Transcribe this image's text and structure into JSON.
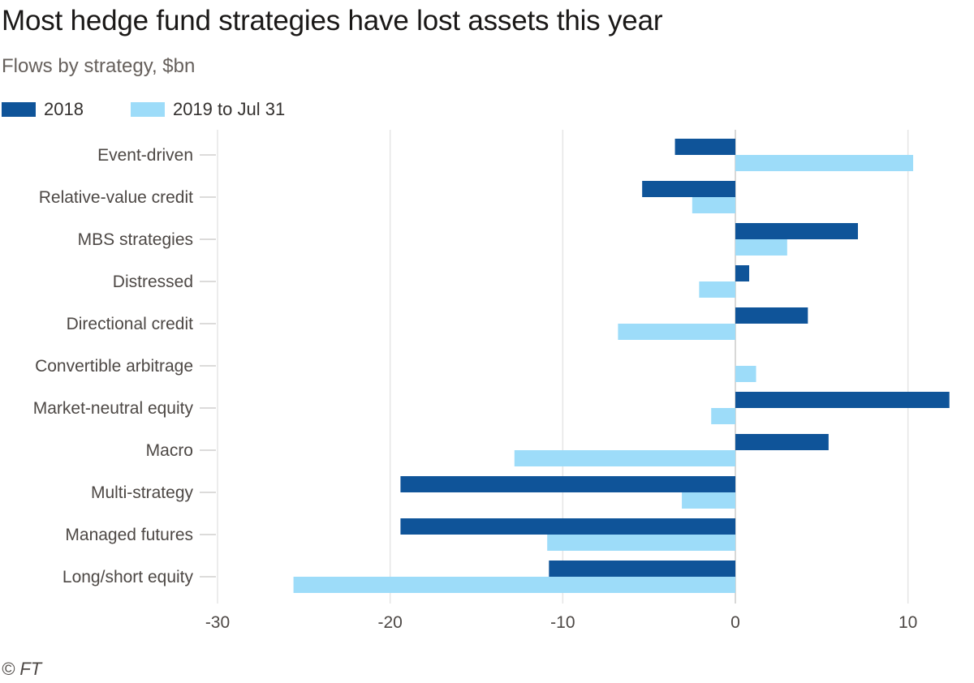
{
  "title": "Most hedge fund strategies have lost assets this year",
  "subtitle": "Flows by strategy, $bn",
  "source": "© FT",
  "colors": {
    "series_2018": "#0f5499",
    "series_2019": "#9ddcf9",
    "gridline": "#e6e6e6",
    "text": "#4d4845"
  },
  "legend": [
    {
      "label": "2018",
      "color": "#0f5499"
    },
    {
      "label": "2019 to Jul 31",
      "color": "#9ddcf9"
    }
  ],
  "chart_data": {
    "type": "bar",
    "orientation": "horizontal",
    "title": "Most hedge fund strategies have lost assets this year",
    "subtitle": "Flows by strategy, $bn",
    "xlabel": "",
    "ylabel": "",
    "xlim": [
      -30,
      13
    ],
    "xticks": [
      -30,
      -20,
      -10,
      0,
      10
    ],
    "grid": true,
    "legend_position": "top-left",
    "categories": [
      "Event-driven",
      "Relative-value credit",
      "MBS strategies",
      "Distressed",
      "Directional credit",
      "Convertible arbitrage",
      "Market-neutral equity",
      "Macro",
      "Multi-strategy",
      "Managed futures",
      "Long/short equity"
    ],
    "series": [
      {
        "name": "2018",
        "values": [
          -3.5,
          -5.4,
          7.1,
          0.8,
          4.2,
          0.0,
          12.4,
          5.4,
          -19.4,
          -19.4,
          -10.8
        ]
      },
      {
        "name": "2019 to Jul 31",
        "values": [
          10.3,
          -2.5,
          3.0,
          -2.1,
          -6.8,
          1.2,
          -1.4,
          -12.8,
          -3.1,
          -10.9,
          -25.6
        ]
      }
    ]
  }
}
